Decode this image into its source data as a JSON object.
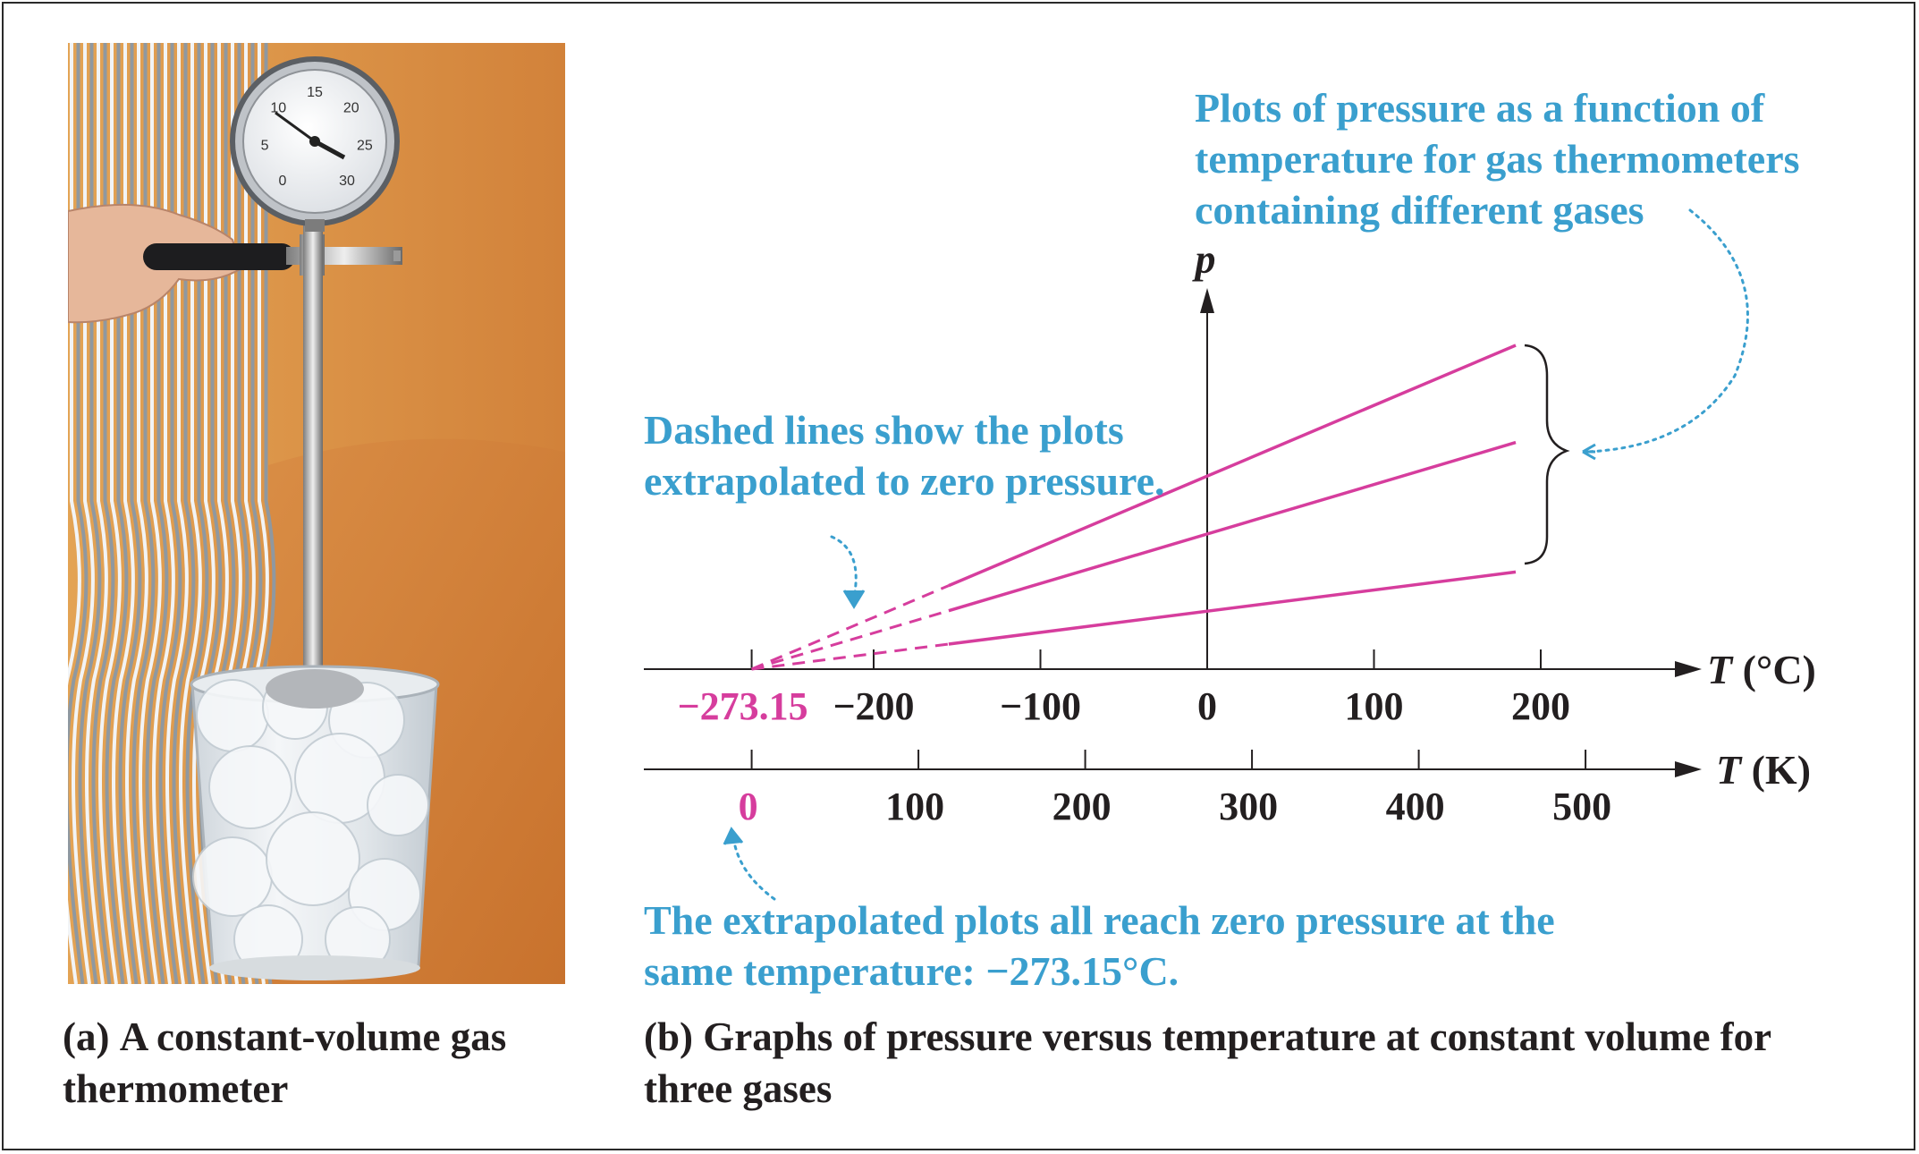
{
  "panel_a": {
    "caption_label": "(a)",
    "caption_text": "A constant-volume gas thermometer",
    "gauge_dial_numbers": [
      "0",
      "5",
      "10",
      "15",
      "20",
      "25",
      "30"
    ]
  },
  "panel_b": {
    "caption_label": "(b)",
    "caption_text": "Graphs of pressure versus temperature at constant volume for three gases"
  },
  "annotations": {
    "top_right": "Plots of pressure as a function of temperature for gas thermometers containing different gases",
    "dashed": "Dashed lines show the plots extrapolated to zero pressure.",
    "bottom": "The extrapolated plots all reach zero pressure at the same temperature: −273.15°C."
  },
  "colors": {
    "accent_blue": "#3a9fce",
    "line_magenta": "#d63d9d",
    "axis": "#231f20"
  },
  "chart_data": {
    "type": "line",
    "ylabel": "p",
    "xlabel": "T (°C)",
    "xlabel_secondary": "T (K)",
    "celsius_ticks": [
      -200,
      -100,
      0,
      100,
      200
    ],
    "celsius_tick_labels": [
      "−200",
      "−100",
      "0",
      "100",
      "200"
    ],
    "celsius_zero_label": "−273.15",
    "kelvin_ticks": [
      0,
      100,
      200,
      300,
      400,
      500
    ],
    "kelvin_tick_labels": [
      "0",
      "100",
      "200",
      "300",
      "400",
      "500"
    ],
    "absolute_zero_c": -273.15,
    "xlim_c": [
      -330,
      360
    ],
    "series": [
      {
        "slope": 1.0,
        "solid_from_c": -155,
        "to_c": 185
      },
      {
        "slope": 0.7,
        "solid_from_c": -155,
        "to_c": 185
      },
      {
        "slope": 0.3,
        "solid_from_c": -155,
        "to_c": 185
      }
    ]
  }
}
